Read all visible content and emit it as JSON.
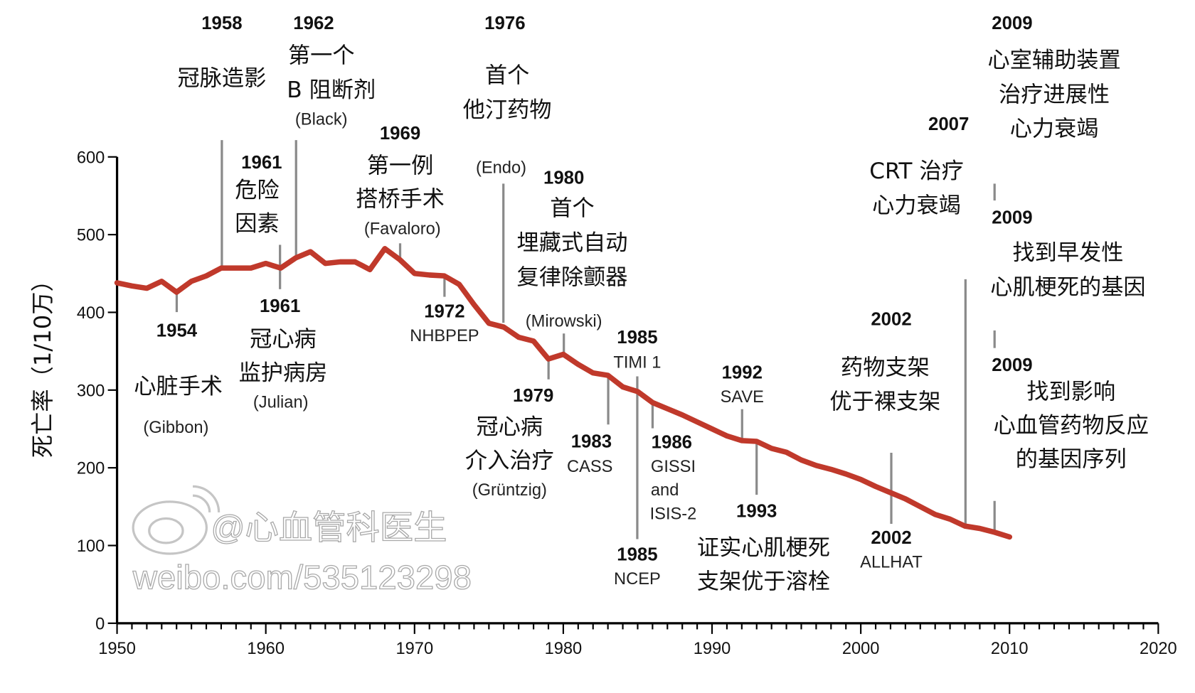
{
  "chart_data": {
    "type": "line",
    "title": "",
    "xlabel": "",
    "ylabel": "死亡率（1/10万）",
    "xlim": [
      1950,
      2020
    ],
    "ylim": [
      0,
      600
    ],
    "x_ticks": [
      "1950",
      "1960",
      "1970",
      "1980",
      "1990",
      "2000",
      "2010",
      "2020"
    ],
    "y_ticks": [
      "0",
      "100",
      "200",
      "300",
      "400",
      "500",
      "600"
    ],
    "line_color": "#c0392b",
    "series": [
      {
        "name": "死亡率",
        "x": [
          1950,
          1951,
          1952,
          1953,
          1954,
          1955,
          1956,
          1957,
          1958,
          1959,
          1960,
          1961,
          1962,
          1963,
          1964,
          1965,
          1966,
          1967,
          1968,
          1969,
          1970,
          1971,
          1972,
          1973,
          1974,
          1975,
          1976,
          1977,
          1978,
          1979,
          1980,
          1981,
          1982,
          1983,
          1984,
          1985,
          1986,
          1987,
          1988,
          1989,
          1990,
          1991,
          1992,
          1993,
          1994,
          1995,
          1996,
          1997,
          1998,
          1999,
          2000,
          2001,
          2002,
          2003,
          2004,
          2005,
          2006,
          2007,
          2008,
          2009,
          2010
        ],
        "values": [
          438,
          434,
          431,
          440,
          426,
          440,
          447,
          457,
          457,
          457,
          463,
          457,
          470,
          478,
          463,
          465,
          465,
          455,
          482,
          468,
          450,
          448,
          447,
          436,
          410,
          386,
          381,
          368,
          363,
          340,
          346,
          333,
          322,
          319,
          304,
          298,
          284,
          276,
          268,
          259,
          250,
          241,
          235,
          234,
          225,
          220,
          210,
          203,
          198,
          192,
          185,
          176,
          168,
          160,
          150,
          140,
          134,
          125,
          122,
          117,
          111
        ]
      }
    ],
    "annotations": [
      {
        "year": "1958",
        "lines": [
          "冠脉造影"
        ]
      },
      {
        "year": "1962",
        "lines": [
          "第一个",
          "B 阻断剂",
          "(Black)"
        ]
      },
      {
        "year": "1976",
        "lines": [
          "首个",
          "他汀药物",
          "(Endo)"
        ]
      },
      {
        "year": "1961",
        "lines": [
          "危险",
          "因素"
        ]
      },
      {
        "year": "1969",
        "lines": [
          "第一例",
          "搭桥手术",
          "(Favaloro)"
        ]
      },
      {
        "year": "1980",
        "lines": [
          "首个",
          "埋藏式自动",
          "复律除颤器",
          "(Mirowski)"
        ]
      },
      {
        "year": "1954",
        "lines": [
          "心脏手术",
          "(Gibbon)"
        ]
      },
      {
        "year": "1961",
        "lines": [
          "冠心病",
          "监护病房",
          "(Julian)"
        ]
      },
      {
        "year": "1972",
        "lines": [
          "NHBPEP"
        ]
      },
      {
        "year": "1979",
        "lines": [
          "冠心病",
          "介入治疗",
          "(Grüntzig)"
        ]
      },
      {
        "year": "1983",
        "lines": [
          "CASS"
        ]
      },
      {
        "year": "1985",
        "lines": [
          "TIMI 1"
        ]
      },
      {
        "year": "1985",
        "lines": [
          "NCEP"
        ]
      },
      {
        "year": "1986",
        "lines": [
          "GISSI",
          "and",
          "ISIS-2"
        ]
      },
      {
        "year": "1992",
        "lines": [
          "SAVE"
        ]
      },
      {
        "year": "1993",
        "lines": [
          "证实心肌梗死",
          "支架优于溶栓"
        ]
      },
      {
        "year": "2002",
        "lines": [
          "药物支架",
          "优于裸支架"
        ]
      },
      {
        "year": "2002",
        "lines": [
          "ALLHAT"
        ]
      },
      {
        "year": "2007",
        "lines": [
          "CRT 治疗",
          "心力衰竭"
        ]
      },
      {
        "year": "2009",
        "lines": [
          "心室辅助装置",
          "治疗进展性",
          "心力衰竭"
        ]
      },
      {
        "year": "2009",
        "lines": [
          "找到早发性",
          "心肌梗死的基因"
        ]
      },
      {
        "year": "2009",
        "lines": [
          "找到影响",
          "心血管药物反应",
          "的基因序列"
        ]
      }
    ]
  },
  "watermark": {
    "handle": "@心血管科医生",
    "url": "weibo.com/535123298"
  }
}
